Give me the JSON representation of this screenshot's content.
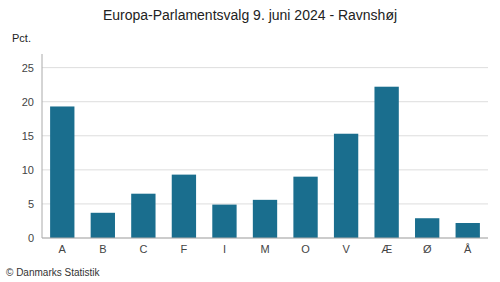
{
  "chart_data": {
    "type": "bar",
    "title": "Europa-Parlamentsvalg 9. juni 2024 - Ravnshøj",
    "categories": [
      "A",
      "B",
      "C",
      "F",
      "I",
      "M",
      "O",
      "V",
      "Æ",
      "Ø",
      "Å"
    ],
    "values": [
      19.3,
      3.7,
      6.5,
      9.3,
      4.9,
      5.6,
      9.0,
      15.3,
      22.2,
      2.9,
      2.2
    ],
    "color": "#1a6e8e",
    "ylabel": "Pct.",
    "ylim": [
      0,
      27
    ],
    "yticks": [
      0,
      5,
      10,
      15,
      20,
      25
    ],
    "grid": true,
    "annotations": [
      "© Danmarks Statistik"
    ]
  }
}
